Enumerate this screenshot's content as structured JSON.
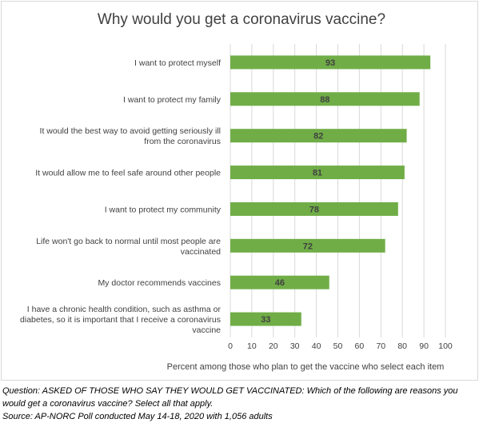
{
  "chart_data": {
    "type": "bar",
    "orientation": "horizontal",
    "title": "Why would you get a coronavirus vaccine?",
    "xlabel": "Percent among those who plan to get the vaccine who select each item",
    "categories": [
      [
        "I want to protect myself"
      ],
      [
        "I want to protect my family"
      ],
      [
        "It would the best way to avoid getting seriously ill",
        "from the coronavirus"
      ],
      [
        "It would allow me to feel safe around other people"
      ],
      [
        "I want to protect my community"
      ],
      [
        "Life won't go back to normal until most people are",
        "vaccinated"
      ],
      [
        "My doctor recommends vaccines"
      ],
      [
        "I have a chronic health condition, such as asthma or",
        "diabetes, so it is important that I receive a coronavirus",
        "vaccine"
      ]
    ],
    "values": [
      93,
      88,
      82,
      81,
      78,
      72,
      46,
      33
    ],
    "xlim": [
      0,
      100
    ],
    "ticks": [
      0,
      10,
      20,
      30,
      40,
      50,
      60,
      70,
      80,
      90,
      100
    ],
    "grid": true,
    "bar_color": "#70ad47",
    "grid_color": "#d9d9d9"
  },
  "footnote": {
    "question_line1": "Question: ASKED OF THOSE WHO SAY THEY WOULD GET VACCINATED: Which of the following are reasons you",
    "question_line2": "would get a coronavirus vaccine? Select all that apply.",
    "source": "Source: AP-NORC Poll conducted May 14-18, 2020 with 1,056 adults"
  }
}
